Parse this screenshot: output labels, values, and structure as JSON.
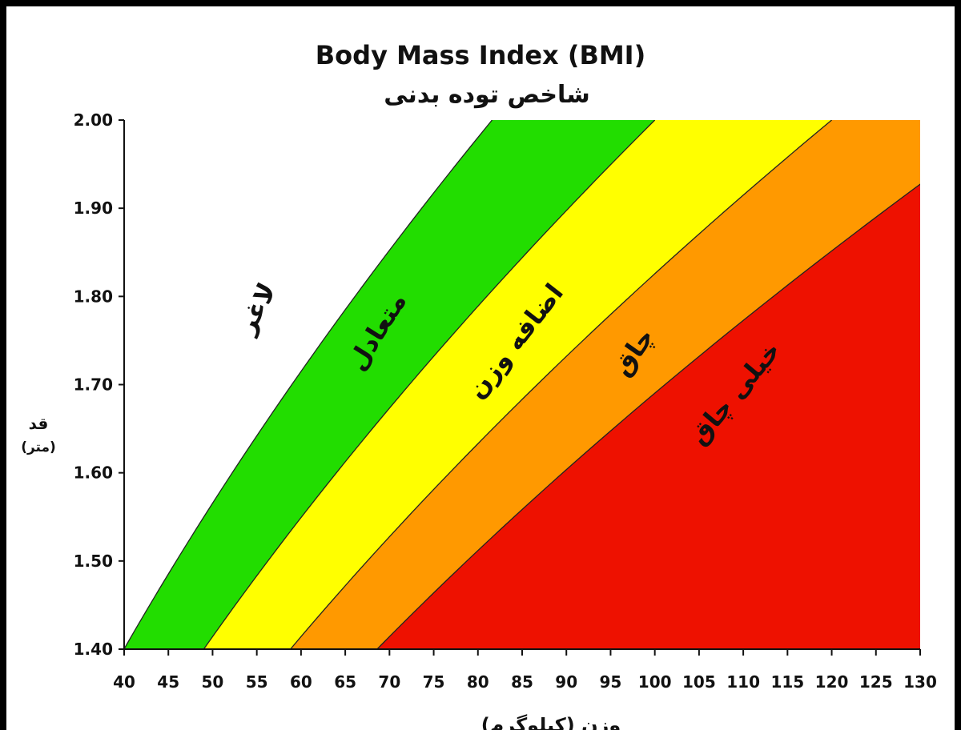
{
  "chart_data": {
    "type": "area",
    "title": "Body Mass Index (BMI)",
    "subtitle": "شاخص توده بدنی",
    "xlabel": "وزن (کیلوگرم)",
    "ylabel": "قد",
    "ylabel_unit": "(متر)",
    "xlim": [
      40,
      130
    ],
    "ylim": [
      1.4,
      2.0
    ],
    "x_ticks": [
      40,
      45,
      50,
      55,
      60,
      65,
      70,
      75,
      80,
      85,
      90,
      95,
      100,
      105,
      110,
      115,
      120,
      125,
      130
    ],
    "y_ticks": [
      1.4,
      1.5,
      1.6,
      1.7,
      1.8,
      1.9,
      2.0
    ],
    "grid": false,
    "boundaries_bmi": [
      20.4,
      25,
      30,
      35
    ],
    "bands": [
      {
        "label": "لاغر",
        "color": "#ffffff",
        "bmi_min": 0,
        "bmi_max": 20.4
      },
      {
        "label": "متعادل",
        "color": "#22dd00",
        "bmi_min": 20.4,
        "bmi_max": 25
      },
      {
        "label": "اضافه وزن",
        "color": "#ffff00",
        "bmi_min": 25,
        "bmi_max": 30
      },
      {
        "label": "چاق",
        "color": "#ff9900",
        "bmi_min": 30,
        "bmi_max": 35
      },
      {
        "label": "خیلی چاق",
        "color": "#ee1100",
        "bmi_min": 35,
        "bmi_max": 1000
      }
    ]
  }
}
